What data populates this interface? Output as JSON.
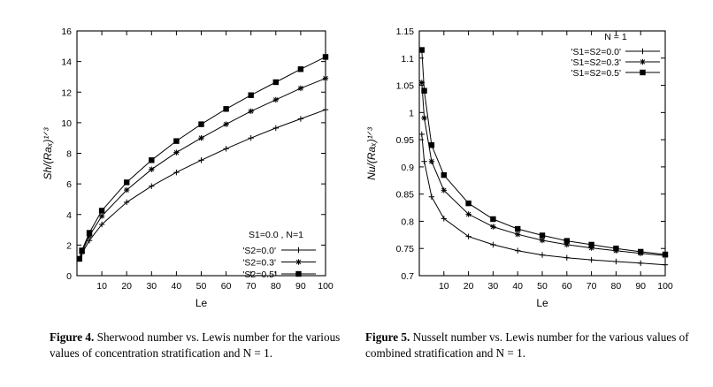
{
  "chart_data": [
    {
      "type": "line",
      "xlabel": "Le",
      "ylabel": "Sh/(Raₓ)¹ᐟ³",
      "xlim": [
        0,
        100
      ],
      "ylim": [
        0,
        16
      ],
      "x_ticks": [
        10,
        20,
        30,
        40,
        50,
        60,
        70,
        80,
        90,
        100
      ],
      "y_ticks": [
        0,
        2,
        4,
        6,
        8,
        10,
        12,
        14,
        16
      ],
      "grid": false,
      "legend_title": "S1=0.0 , N=1",
      "legend_position": "bottom-right",
      "series": [
        {
          "name": "'S2=0.0'",
          "marker": "plus",
          "x": [
            1,
            2,
            5,
            10,
            20,
            30,
            40,
            50,
            60,
            70,
            80,
            90,
            100
          ],
          "y": [
            1.1,
            1.45,
            2.3,
            3.35,
            4.8,
            5.85,
            6.75,
            7.55,
            8.3,
            9.0,
            9.65,
            10.25,
            10.85
          ]
        },
        {
          "name": "'S2=0.3'",
          "marker": "star",
          "x": [
            1,
            2,
            5,
            10,
            20,
            30,
            40,
            50,
            60,
            70,
            80,
            90,
            100
          ],
          "y": [
            1.1,
            1.55,
            2.6,
            3.9,
            5.6,
            6.95,
            8.05,
            9.0,
            9.9,
            10.75,
            11.5,
            12.25,
            12.9
          ]
        },
        {
          "name": "'S2=0.5'",
          "marker": "square",
          "x": [
            1,
            2,
            5,
            10,
            20,
            30,
            40,
            50,
            60,
            70,
            80,
            90,
            100
          ],
          "y": [
            1.1,
            1.65,
            2.8,
            4.25,
            6.1,
            7.55,
            8.8,
            9.9,
            10.9,
            11.8,
            12.65,
            13.5,
            14.3
          ]
        }
      ]
    },
    {
      "type": "line",
      "xlabel": "Le",
      "ylabel": "Nu/(Raₓ)¹ᐟ³",
      "xlim": [
        0,
        100
      ],
      "ylim": [
        0.7,
        1.15
      ],
      "x_ticks": [
        10,
        20,
        30,
        40,
        50,
        60,
        70,
        80,
        90,
        100
      ],
      "y_ticks": [
        0.7,
        0.75,
        0.8,
        0.85,
        0.9,
        0.95,
        1,
        1.05,
        1.1,
        1.15
      ],
      "grid": false,
      "legend_title": "N = 1",
      "legend_position": "top-right",
      "series": [
        {
          "name": "'S1=S2=0.0'",
          "marker": "plus",
          "x": [
            1,
            2,
            5,
            10,
            20,
            30,
            40,
            50,
            60,
            70,
            80,
            90,
            100
          ],
          "y": [
            0.96,
            0.91,
            0.845,
            0.805,
            0.772,
            0.757,
            0.746,
            0.738,
            0.733,
            0.729,
            0.726,
            0.723,
            0.72
          ]
        },
        {
          "name": "'S1=S2=0.3'",
          "marker": "star",
          "x": [
            1,
            2,
            5,
            10,
            20,
            30,
            40,
            50,
            60,
            70,
            80,
            90,
            100
          ],
          "y": [
            1.055,
            0.99,
            0.91,
            0.857,
            0.813,
            0.79,
            0.776,
            0.765,
            0.757,
            0.751,
            0.746,
            0.741,
            0.737
          ]
        },
        {
          "name": "'S1=S2=0.5'",
          "marker": "square",
          "x": [
            1,
            2,
            5,
            10,
            20,
            30,
            40,
            50,
            60,
            70,
            80,
            90,
            100
          ],
          "y": [
            1.115,
            1.04,
            0.94,
            0.885,
            0.833,
            0.804,
            0.786,
            0.774,
            0.764,
            0.757,
            0.75,
            0.744,
            0.739
          ]
        }
      ]
    }
  ],
  "captions": {
    "fig4_label": "Figure 4.",
    "fig4_text": "Sherwood number vs. Lewis number for the various values of concentration stratification and N = 1.",
    "fig5_label": "Figure 5.",
    "fig5_text": "Nusselt number vs. Lewis number for the various values of combined stratification and N = 1."
  }
}
